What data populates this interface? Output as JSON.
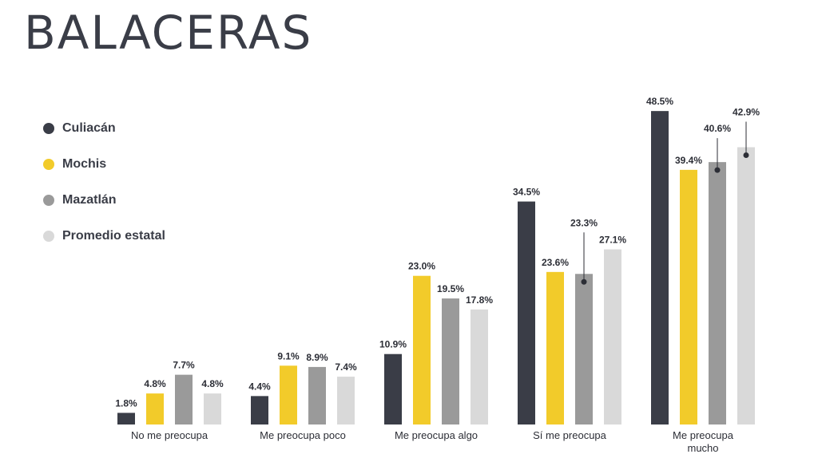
{
  "header": {
    "title": "BALACERAS"
  },
  "colors": {
    "Culiacán": "#3a3d47",
    "Mochis": "#f2cb2a",
    "Mazatlán": "#9a9a9a",
    "Promedio estatal": "#d9d9d9"
  },
  "chart_data": {
    "type": "bar",
    "title": "BALACERAS",
    "categories": [
      [
        "No me preocupa"
      ],
      [
        "Me preocupa poco"
      ],
      [
        "Me preocupa algo"
      ],
      [
        "Sí me preocupa"
      ],
      [
        "Me preocupa",
        "mucho"
      ]
    ],
    "series": [
      {
        "name": "Culiacán",
        "values": [
          1.8,
          4.4,
          10.9,
          34.5,
          48.5
        ]
      },
      {
        "name": "Mochis",
        "values": [
          4.8,
          9.1,
          23.0,
          23.6,
          39.4
        ]
      },
      {
        "name": "Mazatlán",
        "values": [
          7.7,
          8.9,
          19.5,
          23.3,
          40.6
        ]
      },
      {
        "name": "Promedio estatal",
        "values": [
          4.8,
          7.4,
          17.8,
          27.1,
          42.9
        ]
      }
    ],
    "value_labels": [
      [
        "1.8%",
        "4.4%",
        "10.9%",
        "34.5%",
        "48.5%"
      ],
      [
        "4.8%",
        "9.1%",
        "23.0%",
        "23.6%",
        "39.4%"
      ],
      [
        "7.7%",
        "8.9%",
        "19.5%",
        "23.3%",
        "40.6%"
      ],
      [
        "4.8%",
        "7.4%",
        "17.8%",
        "27.1%",
        "42.9%"
      ]
    ],
    "ylim": [
      0,
      50
    ],
    "grid": false,
    "legend": "left"
  }
}
